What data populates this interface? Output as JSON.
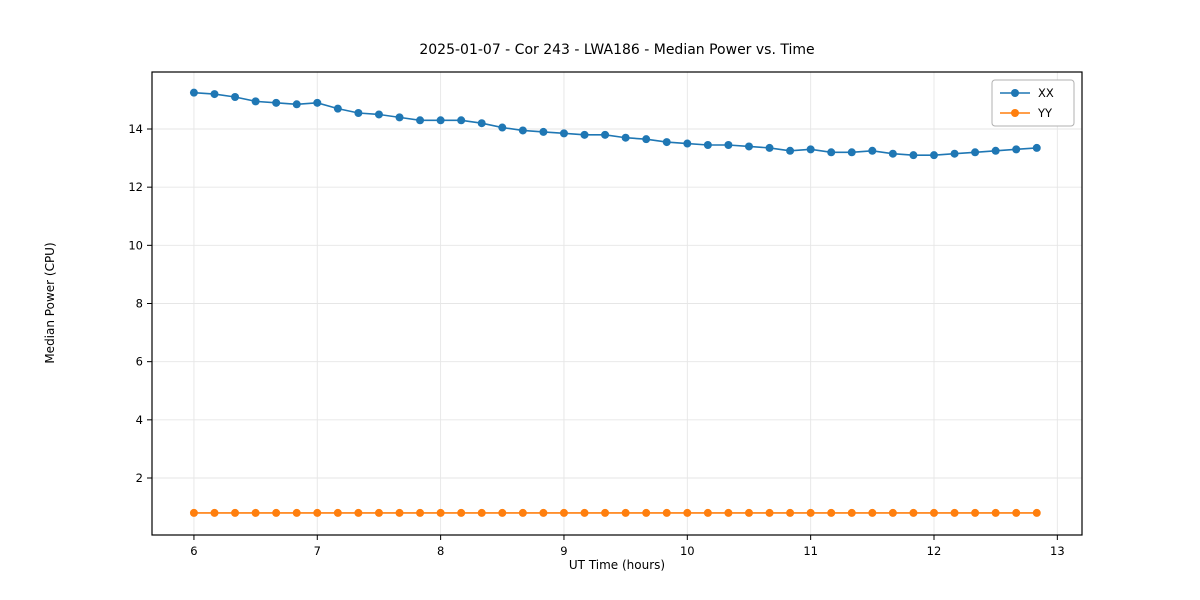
{
  "figure": {
    "title": "2025-01-07 - Cor 243 - LWA186 - Median Power vs. Time",
    "xlabel": "UT Time (hours)",
    "ylabel": "Median Power (CPU)"
  },
  "chart_data": {
    "type": "line",
    "title": "2025-01-07 - Cor 243 - LWA186 - Median Power vs. Time",
    "xlabel": "UT Time (hours)",
    "ylabel": "Median Power (CPU)",
    "xlim": [
      5.66,
      13.2
    ],
    "ylim": [
      0.04,
      15.96
    ],
    "xticks": [
      6,
      7,
      8,
      9,
      10,
      11,
      12,
      13
    ],
    "yticks": [
      2,
      4,
      6,
      8,
      10,
      12,
      14
    ],
    "grid": true,
    "legend_position": "upper right",
    "x": [
      6.0,
      6.1667,
      6.3333,
      6.5,
      6.6667,
      6.8333,
      7.0,
      7.1667,
      7.3333,
      7.5,
      7.6667,
      7.8333,
      8.0,
      8.1667,
      8.3333,
      8.5,
      8.6667,
      8.8333,
      9.0,
      9.1667,
      9.3333,
      9.5,
      9.6667,
      9.8333,
      10.0,
      10.1667,
      10.3333,
      10.5,
      10.6667,
      10.8333,
      11.0,
      11.1667,
      11.3333,
      11.5,
      11.6667,
      11.8333,
      12.0,
      12.1667,
      12.3333,
      12.5,
      12.6667,
      12.8333
    ],
    "series": [
      {
        "name": "XX",
        "color": "#1f77b4",
        "values": [
          15.25,
          15.2,
          15.1,
          14.95,
          14.9,
          14.85,
          14.9,
          14.7,
          14.55,
          14.5,
          14.4,
          14.3,
          14.3,
          14.3,
          14.2,
          14.05,
          13.95,
          13.9,
          13.85,
          13.8,
          13.8,
          13.7,
          13.65,
          13.55,
          13.5,
          13.45,
          13.45,
          13.4,
          13.35,
          13.25,
          13.3,
          13.2,
          13.2,
          13.25,
          13.15,
          13.1,
          13.1,
          13.15,
          13.2,
          13.25,
          13.3,
          13.35
        ]
      },
      {
        "name": "YY",
        "color": "#ff7f0e",
        "values": [
          0.8,
          0.8,
          0.8,
          0.8,
          0.8,
          0.8,
          0.8,
          0.8,
          0.8,
          0.8,
          0.8,
          0.8,
          0.8,
          0.8,
          0.8,
          0.8,
          0.8,
          0.8,
          0.8,
          0.8,
          0.8,
          0.8,
          0.8,
          0.8,
          0.8,
          0.8,
          0.8,
          0.8,
          0.8,
          0.8,
          0.8,
          0.8,
          0.8,
          0.8,
          0.8,
          0.8,
          0.8,
          0.8,
          0.8,
          0.8,
          0.8,
          0.8
        ]
      }
    ],
    "style": {
      "grid_color": "#e6e6e6",
      "frame_color": "#000000",
      "tick_font_size": 11.5,
      "marker_radius": 4,
      "line_width": 1.6
    }
  }
}
